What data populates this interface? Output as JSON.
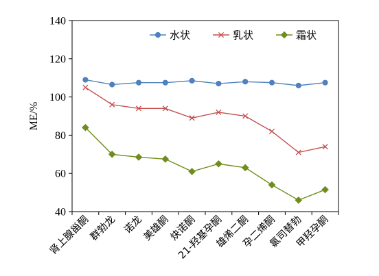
{
  "chart_data": {
    "type": "line",
    "ylabel": "ME/%",
    "xlabel": "",
    "ylim": [
      40,
      140
    ],
    "yticks": [
      40,
      60,
      80,
      100,
      120,
      140
    ],
    "grid": false,
    "legend_position": "top-right",
    "categories": [
      "肾上腺甾酮",
      "群勃龙",
      "诺龙",
      "美雄酮",
      "炔诺酮",
      "21-羟基孕酮",
      "雄烯二酮",
      "孕二烯酮",
      "氯司替勃",
      "甲羟孕酮"
    ],
    "series": [
      {
        "name": "水状",
        "color": "#4f81bd",
        "marker": "circle",
        "values": [
          109,
          106.5,
          107.5,
          107.5,
          108.5,
          107,
          108,
          107.5,
          106,
          107.5
        ]
      },
      {
        "name": "乳状",
        "color": "#c0504d",
        "marker": "x",
        "values": [
          105,
          96,
          94,
          94,
          89,
          92,
          90,
          82,
          71,
          74
        ]
      },
      {
        "name": "霜状",
        "color": "#6f8d1c",
        "marker": "diamond",
        "values": [
          84,
          70,
          68.5,
          67.5,
          61,
          65,
          63,
          54,
          46,
          51.5
        ]
      }
    ]
  }
}
